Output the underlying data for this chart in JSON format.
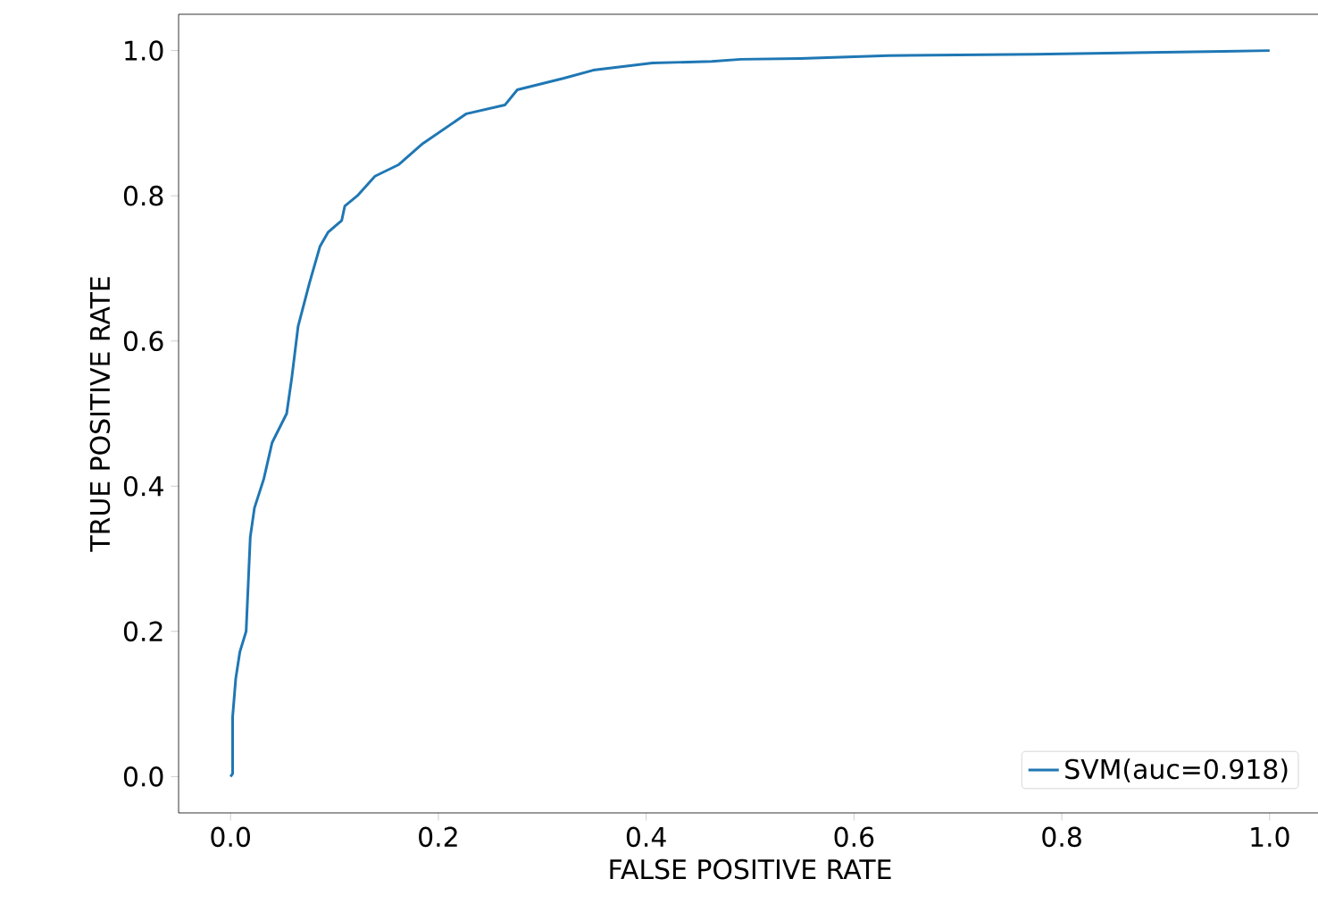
{
  "chart_data": {
    "type": "line",
    "xlabel": "FALSE POSITIVE RATE",
    "ylabel": "TRUE POSITIVE RATE",
    "xlim": [
      -0.05,
      1.05
    ],
    "ylim": [
      -0.05,
      1.05
    ],
    "xticks": [
      {
        "value": 0,
        "label": "0.0"
      },
      0.2,
      0.4,
      0.6,
      0.8,
      {
        "value": 1,
        "label": "1.0"
      }
    ],
    "yticks": [
      {
        "value": 0,
        "label": "0.0"
      },
      0.2,
      0.4,
      0.6,
      0.8,
      {
        "value": 1,
        "label": "1.0"
      }
    ],
    "grid": false,
    "legend": "bottom right",
    "marker": "none",
    "line_style": "solid",
    "series": [
      {
        "name": "SVM(auc=0.918)",
        "color": "#1f77b4",
        "x": [
          0,
          0.002,
          0.002,
          0.005,
          0.009,
          0.015,
          0.019,
          0.023,
          0.032,
          0.04,
          0.054,
          0.059,
          0.065,
          0.076,
          0.086,
          0.094,
          0.107,
          0.11,
          0.122,
          0.139,
          0.162,
          0.185,
          0.227,
          0.264,
          0.276,
          0.321,
          0.349,
          0.406,
          0.463,
          0.491,
          0.548,
          0.633,
          0.774,
          0.956,
          1.0
        ],
        "values": [
          0,
          0.004,
          0.082,
          0.135,
          0.172,
          0.2,
          0.33,
          0.37,
          0.41,
          0.46,
          0.5,
          0.55,
          0.62,
          0.68,
          0.73,
          0.75,
          0.766,
          0.786,
          0.8,
          0.827,
          0.843,
          0.872,
          0.913,
          0.925,
          0.946,
          0.962,
          0.973,
          0.983,
          0.985,
          0.988,
          0.989,
          0.993,
          0.995,
          0.999,
          1.0
        ]
      }
    ]
  }
}
